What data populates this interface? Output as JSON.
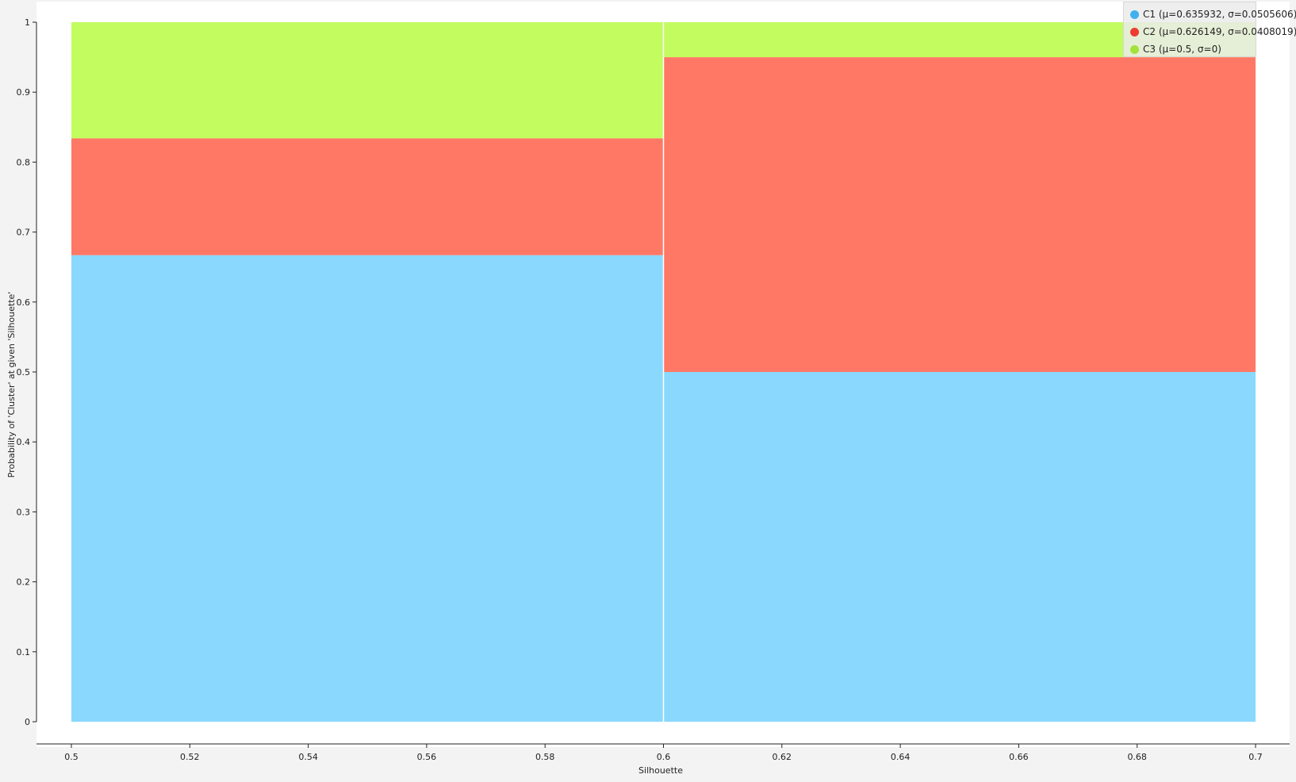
{
  "chart_data": {
    "type": "bar",
    "subtype": "stacked-100-histogram",
    "title": "",
    "xlabel": "Silhouette",
    "ylabel": "Probability of 'Cluster' at given 'Silhouette'",
    "xlim": [
      0.5,
      0.7
    ],
    "ylim": [
      0,
      1
    ],
    "x_ticks": [
      "0.5",
      "0.52",
      "0.54",
      "0.56",
      "0.58",
      "0.6",
      "0.62",
      "0.64",
      "0.66",
      "0.68",
      "0.7"
    ],
    "y_ticks": [
      "0",
      "0.1",
      "0.2",
      "0.3",
      "0.4",
      "0.5",
      "0.6",
      "0.7",
      "0.8",
      "0.9",
      "1"
    ],
    "bins": [
      {
        "x_start": 0.5,
        "x_end": 0.6
      },
      {
        "x_start": 0.6,
        "x_end": 0.7
      }
    ],
    "series": [
      {
        "name": "C1 (μ=0.635932, σ=0.0505606)",
        "color": "#8ad8fd",
        "legend_color": "#3fb1ec",
        "values": [
          0.667,
          0.5
        ]
      },
      {
        "name": "C2 (μ=0.626149, σ=0.0408019)",
        "color": "#ff7866",
        "legend_color": "#ec3d2e",
        "values": [
          0.167,
          0.45
        ]
      },
      {
        "name": "C3 (μ=0.5, σ=0)",
        "color": "#c2fc5e",
        "legend_color": "#a3e23b",
        "values": [
          0.167,
          0.05
        ]
      }
    ],
    "legend_position": "top-right",
    "grid": false
  }
}
